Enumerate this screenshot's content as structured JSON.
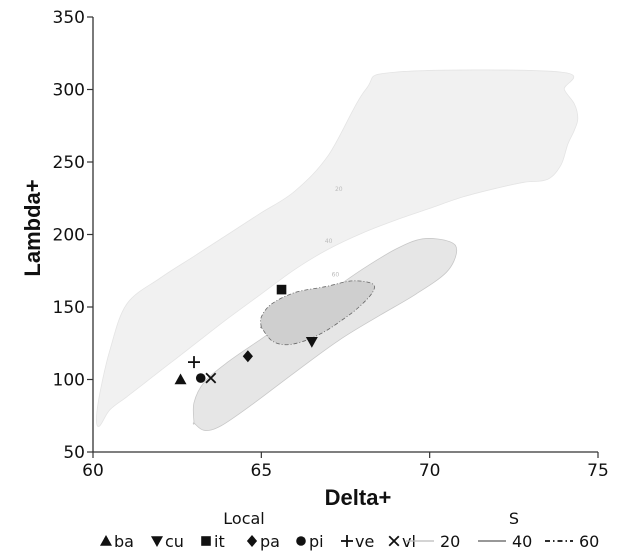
{
  "chart_data": {
    "type": "scatter",
    "xlabel": "Delta+",
    "ylabel": "Lambda+",
    "xlim": [
      60,
      75
    ],
    "ylim": [
      50,
      350
    ],
    "x_ticks": [
      60,
      65,
      70,
      75
    ],
    "y_ticks": [
      50,
      100,
      150,
      200,
      250,
      300,
      350
    ],
    "x_tick_labels": [
      "60",
      "65",
      "70",
      "75"
    ],
    "y_tick_labels": [
      "50",
      "100",
      "150",
      "200",
      "250",
      "300",
      "350"
    ],
    "grid": false,
    "series": [
      {
        "name": "ba",
        "marker": "triangle-up",
        "x": [
          62.6
        ],
        "y": [
          100
        ]
      },
      {
        "name": "cu",
        "marker": "triangle-down",
        "x": [
          66.5
        ],
        "y": [
          126
        ]
      },
      {
        "name": "it",
        "marker": "square",
        "x": [
          65.6
        ],
        "y": [
          162
        ]
      },
      {
        "name": "pa",
        "marker": "diamond",
        "x": [
          64.6
        ],
        "y": [
          116
        ]
      },
      {
        "name": "pi",
        "marker": "circle",
        "x": [
          63.2
        ],
        "y": [
          101
        ]
      },
      {
        "name": "ve",
        "marker": "plus",
        "x": [
          63.0
        ],
        "y": [
          112
        ]
      },
      {
        "name": "vl",
        "marker": "x",
        "x": [
          63.5
        ],
        "y": [
          101
        ]
      }
    ],
    "contours": [
      {
        "name": "20",
        "linestyle": "solid-light",
        "fill": "#f1f1f1",
        "x": [
          60.2,
          60.5,
          61.0,
          61.5,
          62.0,
          62.5,
          63.0,
          63.5,
          64.0,
          65.0,
          66.0,
          67.0,
          68.0,
          69.0,
          70.0,
          71.0,
          72.0,
          72.8,
          73.5,
          73.9,
          74.1,
          74.3,
          74.4,
          74.3,
          74.0,
          73.9,
          69.0,
          68.1,
          67.0,
          66.0,
          65.0,
          64.0,
          63.0,
          62.0,
          61.0,
          60.5,
          60.2,
          60.1
        ],
        "y": [
          68,
          79,
          88,
          97,
          106,
          115,
          124,
          133,
          142,
          159,
          176,
          190,
          201,
          210,
          218,
          226,
          232,
          236,
          238,
          248,
          262,
          272,
          280,
          290,
          300,
          312,
          312,
          300,
          255,
          230,
          215,
          200,
          185,
          170,
          152,
          120,
          90,
          72
        ]
      },
      {
        "name": "40",
        "linestyle": "solid",
        "fill": "#e6e6e6",
        "x": [
          63.0,
          63.0,
          63.3,
          64.0,
          65.0,
          66.0,
          67.0,
          68.0,
          69.0,
          69.8,
          70.6,
          70.8,
          70.5,
          69.6,
          68.5,
          67.3,
          66.0,
          64.8,
          63.8,
          63.3,
          63.0
        ],
        "y": [
          70,
          84,
          98,
          112,
          128,
          144,
          160,
          176,
          190,
          197,
          195,
          188,
          174,
          159,
          144,
          127,
          105,
          84,
          68,
          65,
          70
        ]
      },
      {
        "name": "60",
        "linestyle": "dashdot",
        "fill": "#cfcfcf",
        "x": [
          65.0,
          65.0,
          65.3,
          66.0,
          66.9,
          67.7,
          68.3,
          68.3,
          67.9,
          67.4,
          66.8,
          66.2,
          65.7,
          65.3,
          65.0
        ],
        "y": [
          136,
          143,
          152,
          160,
          164,
          168,
          166,
          160,
          150,
          141,
          132,
          126,
          124,
          127,
          136
        ]
      }
    ],
    "contour_level_labels": [
      {
        "text": "20",
        "x": 67.3,
        "y": 230
      },
      {
        "text": "40",
        "x": 67.0,
        "y": 194
      },
      {
        "text": "60",
        "x": 67.2,
        "y": 171
      }
    ],
    "legend": {
      "position": "bottom",
      "local_title": "Local",
      "local_items": [
        "ba",
        "cu",
        "it",
        "pa",
        "pi",
        "ve",
        "vl"
      ],
      "s_title": "S",
      "s_items": [
        "20",
        "40",
        "60"
      ]
    }
  }
}
